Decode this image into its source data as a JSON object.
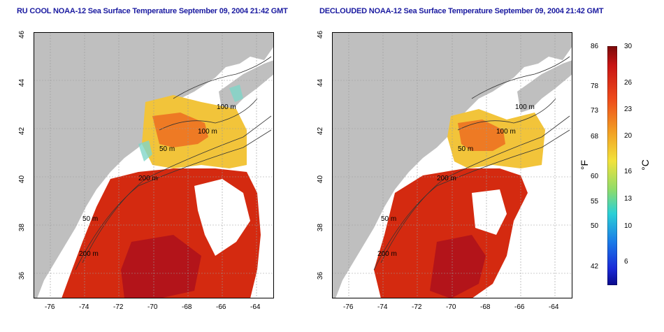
{
  "panels": [
    {
      "title": "RU COOL NOAA-12 Sea Surface Temperature September 09, 2004 21:42 GMT",
      "declouded": false
    },
    {
      "title": "DECLOUDED NOAA-12 Sea Surface Temperature September 09, 2004 21:42 GMT",
      "declouded": true
    }
  ],
  "axes": {
    "lon_ticks": [
      "-76",
      "-74",
      "-72",
      "-70",
      "-68",
      "-66",
      "-64"
    ],
    "lat_ticks": [
      "46",
      "44",
      "42",
      "40",
      "38",
      "36"
    ],
    "lon_range": [
      -77,
      -63
    ],
    "lat_range": [
      35,
      46
    ]
  },
  "contour_labels": [
    "100 m",
    "100 m",
    "50 m",
    "200 m",
    "50 m",
    "200 m"
  ],
  "colorbar": {
    "fahrenheit_ticks": [
      "86",
      "78",
      "73",
      "68",
      "60",
      "55",
      "50",
      "42"
    ],
    "celsius_ticks": [
      "30",
      "26",
      "23",
      "20",
      "16",
      "13",
      "10",
      "6"
    ],
    "fahrenheit_unit": "°F",
    "celsius_unit": "°C",
    "range_c": [
      3,
      30
    ]
  },
  "colors": {
    "title": "#1a1aa0",
    "land": "#bfbfbf",
    "cloud": "#ffffff",
    "warm": "#d42a10",
    "hot": "#b3141a",
    "orange": "#ee7a24",
    "yellow": "#f2c43a",
    "cyan": "#7fd6c8",
    "contour": "#333333"
  }
}
